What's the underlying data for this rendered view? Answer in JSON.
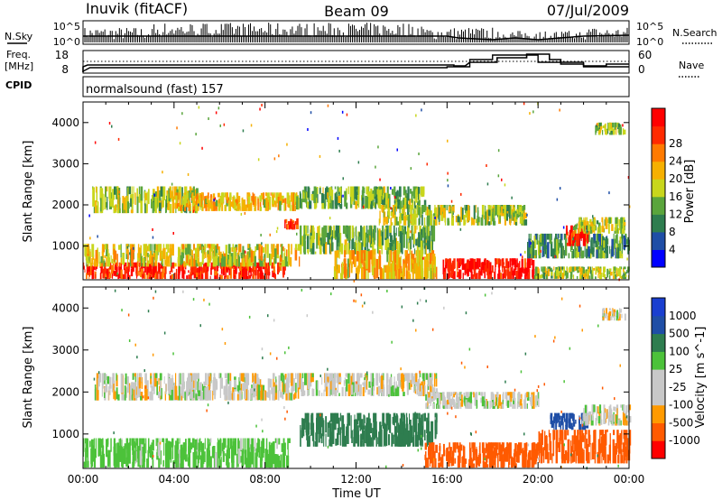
{
  "header": {
    "station": "Inuvik (fitACF)",
    "beam": "Beam 09",
    "date": "07/Jul/2009"
  },
  "labels": {
    "nsky": "N.Sky",
    "nsearch": "N.Search",
    "freq": "Freq.",
    "freq_unit": "[MHz]",
    "nave": "Nave",
    "cpid": "CPID",
    "cpid_value": "normalsound (fast) 157",
    "noise_left_ticks": [
      "10^5",
      "10^0"
    ],
    "noise_right_ticks": [
      "10^5",
      "10^0"
    ],
    "freq_ticks": [
      "18",
      "8"
    ],
    "nave_ticks": [
      "60",
      "0"
    ]
  },
  "colors": {
    "power": [
      "#0000ff",
      "#1f4ea6",
      "#2e7d4f",
      "#5aa53c",
      "#c8d61c",
      "#f6b000",
      "#ff7a00",
      "#ff2a00",
      "#ff0000"
    ],
    "velocity": [
      "#ff0000",
      "#ff5a00",
      "#ff9a00",
      "#c8c8c8",
      "#c8c8c8",
      "#4cc23a",
      "#2e7d4f",
      "#1f4ea6",
      "#1a3fd0"
    ]
  },
  "chart_data": [
    {
      "type": "heatmap",
      "panel": "power",
      "xlabel": "",
      "ylabel": "Slant Range [km]",
      "xlim": [
        "00:00",
        "24:00"
      ],
      "ylim": [
        180,
        4500
      ],
      "x_ticks": [
        "00:00",
        "04:00",
        "08:00",
        "12:00",
        "16:00",
        "20:00",
        "00:00"
      ],
      "y_ticks": [
        1000,
        2000,
        3000,
        4000
      ],
      "colorbar": {
        "label": "Power [dB]",
        "ticks": [
          "4",
          "8",
          "12",
          "16",
          "20",
          "24",
          "28"
        ],
        "range": [
          0,
          30
        ]
      },
      "bands": [
        {
          "t0": 0.0,
          "t1": 8.8,
          "r0": 200,
          "r1": 600,
          "value": 26
        },
        {
          "t0": 0.0,
          "t1": 9.5,
          "r0": 500,
          "r1": 1050,
          "value": 16
        },
        {
          "t0": 0.4,
          "t1": 5.0,
          "r0": 1800,
          "r1": 2450,
          "value": 14
        },
        {
          "t0": 4.0,
          "t1": 9.5,
          "r0": 1850,
          "r1": 2300,
          "value": 18
        },
        {
          "t0": 8.8,
          "t1": 9.4,
          "r0": 1400,
          "r1": 1700,
          "value": 26
        },
        {
          "t0": 9.5,
          "t1": 15.0,
          "r0": 1900,
          "r1": 2450,
          "value": 12
        },
        {
          "t0": 9.5,
          "t1": 15.5,
          "r0": 800,
          "r1": 1500,
          "value": 12
        },
        {
          "t0": 11.0,
          "t1": 15.5,
          "r0": 200,
          "r1": 900,
          "value": 18
        },
        {
          "t0": 13.0,
          "t1": 19.5,
          "r0": 1500,
          "r1": 2000,
          "value": 14
        },
        {
          "t0": 15.8,
          "t1": 19.8,
          "r0": 200,
          "r1": 700,
          "value": 28
        },
        {
          "t0": 19.8,
          "t1": 24.0,
          "r0": 200,
          "r1": 500,
          "value": 14
        },
        {
          "t0": 19.5,
          "t1": 24.0,
          "r0": 700,
          "r1": 1300,
          "value": 10
        },
        {
          "t0": 21.2,
          "t1": 22.2,
          "r0": 1000,
          "r1": 1500,
          "value": 26
        },
        {
          "t0": 21.5,
          "t1": 23.8,
          "r0": 1300,
          "r1": 1700,
          "value": 14
        },
        {
          "t0": 22.5,
          "t1": 23.8,
          "r0": 3700,
          "r1": 4000,
          "value": 14
        }
      ]
    },
    {
      "type": "heatmap",
      "panel": "velocity",
      "xlabel": "Time UT",
      "ylabel": "Slant Range [km]",
      "xlim": [
        "00:00",
        "24:00"
      ],
      "ylim": [
        180,
        4500
      ],
      "x_ticks": [
        "00:00",
        "04:00",
        "08:00",
        "12:00",
        "16:00",
        "20:00",
        "00:00"
      ],
      "y_ticks": [
        1000,
        2000,
        3000,
        4000
      ],
      "colorbar": {
        "label": "Velocity [m s^-1]",
        "ticks": [
          "1000",
          "500",
          "100",
          "25",
          "-25",
          "-100",
          "-500",
          "-1000"
        ],
        "range": [
          -1000,
          1000
        ]
      },
      "bands": [
        {
          "t0": 0.0,
          "t1": 9.0,
          "r0": 200,
          "r1": 900,
          "value": 60
        },
        {
          "t0": 0.5,
          "t1": 9.5,
          "r0": 1800,
          "r1": 2450,
          "value": 0
        },
        {
          "t0": 9.5,
          "t1": 15.5,
          "r0": 1900,
          "r1": 2450,
          "value": 0
        },
        {
          "t0": 9.5,
          "t1": 15.5,
          "r0": 700,
          "r1": 1500,
          "value": 200
        },
        {
          "t0": 15.0,
          "t1": 20.0,
          "r0": 200,
          "r1": 800,
          "value": -150
        },
        {
          "t0": 15.0,
          "t1": 20.0,
          "r0": 1600,
          "r1": 2000,
          "value": 0
        },
        {
          "t0": 20.0,
          "t1": 24.0,
          "r0": 300,
          "r1": 1100,
          "value": -250
        },
        {
          "t0": 20.5,
          "t1": 22.2,
          "r0": 1100,
          "r1": 1500,
          "value": 700
        },
        {
          "t0": 21.8,
          "t1": 24.0,
          "r0": 1200,
          "r1": 1700,
          "value": 0
        },
        {
          "t0": 22.8,
          "t1": 23.8,
          "r0": 3700,
          "r1": 4000,
          "value": 0
        }
      ]
    }
  ]
}
